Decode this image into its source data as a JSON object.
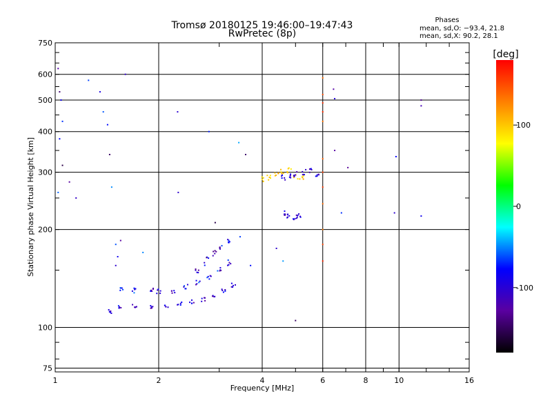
{
  "chart_data": {
    "type": "scatter",
    "title": "Tromsø 20180125 19:46:00–19:47:43",
    "subtitle": "RwPretec (8p)",
    "xlabel": "Frequency [MHz]",
    "ylabel": "Stationary phase Virtual Height [km]",
    "x_scale": "log",
    "y_scale": "log",
    "xlim": [
      1,
      16
    ],
    "ylim": [
      73,
      750
    ],
    "x_ticks": [
      1,
      2,
      4,
      6,
      8,
      10,
      16
    ],
    "y_ticks": [
      75,
      100,
      200,
      300,
      400,
      500,
      600,
      750
    ],
    "grid": true,
    "stats": {
      "heading": "Phases",
      "o_line": "mean, sd,O: −93.4, 21.8",
      "x_line": "mean, sd,X:  90.2, 28.1"
    },
    "colorbar": {
      "label": "[deg]",
      "ticks": [
        100,
        0,
        -100
      ],
      "range": [
        -180,
        180
      ],
      "colors": [
        "#000000",
        "#5a00a0",
        "#0000ff",
        "#00ffff",
        "#00ff00",
        "#ffff00",
        "#ff8000",
        "#ff0000"
      ]
    },
    "point_sets": [
      {
        "name": "o-trace-lower",
        "phase": -100,
        "jitter": 30,
        "spread_y": 0.015,
        "x": [
          1.45,
          1.55,
          1.7,
          1.9,
          2.1,
          2.3,
          2.5,
          2.7,
          2.9,
          3.1,
          3.3
        ],
        "y": [
          112,
          115,
          116,
          116,
          116,
          118,
          120,
          122,
          126,
          130,
          135
        ]
      },
      {
        "name": "o-trace-upper",
        "phase": -90,
        "jitter": 40,
        "spread_y": 0.02,
        "x": [
          1.55,
          1.7,
          1.9,
          2.0,
          2.2,
          2.4,
          2.6,
          2.8,
          3.0,
          3.2
        ],
        "y": [
          130,
          130,
          131,
          129,
          130,
          133,
          137,
          143,
          150,
          158
        ]
      },
      {
        "name": "o-trace-steep",
        "phase": -100,
        "jitter": 40,
        "spread_y": 0.03,
        "x": [
          2.6,
          2.75,
          2.9,
          3.05,
          3.2
        ],
        "y": [
          150,
          160,
          170,
          178,
          185
        ]
      },
      {
        "name": "x-trace-f",
        "phase": 100,
        "jitter": 15,
        "spread_y": 0.02,
        "x": [
          4.0,
          4.2,
          4.4,
          4.6,
          4.8,
          5.0,
          5.2
        ],
        "y": [
          286,
          290,
          295,
          300,
          305,
          292,
          288
        ]
      },
      {
        "name": "o-trace-f",
        "phase": -100,
        "jitter": 25,
        "spread_y": 0.02,
        "x": [
          4.6,
          4.8,
          5.0,
          5.3,
          5.5,
          5.8
        ],
        "y": [
          290,
          292,
          295,
          300,
          305,
          290
        ]
      },
      {
        "name": "o-trace-f-low",
        "phase": -100,
        "jitter": 25,
        "spread_y": 0.02,
        "x": [
          4.6,
          4.8,
          5.0,
          5.1
        ],
        "y": [
          225,
          220,
          218,
          222
        ]
      },
      {
        "name": "vertical-streak-6mhz",
        "phase": 150,
        "jitter": 20,
        "spread_y": 0.0,
        "x": [
          6.0,
          6.0,
          6.0,
          6.0,
          6.0,
          6.0,
          6.0,
          6.0,
          6.0,
          6.0,
          6.0,
          6.0
        ],
        "y": [
          585,
          520,
          490,
          460,
          430,
          330,
          300,
          270,
          240,
          200,
          180,
          160
        ]
      },
      {
        "name": "scattered",
        "phase": -100,
        "jitter": 60,
        "spread_y": 0.0,
        "x": [
          1.02,
          1.03,
          1.04,
          1.05,
          1.03,
          1.02,
          1.25,
          1.35,
          1.38,
          1.42,
          1.44,
          1.46,
          1.5,
          1.52,
          1.6,
          2.27,
          2.28,
          2.8,
          2.92,
          3.42,
          3.58,
          3.45,
          4.4,
          4.6,
          5.0,
          6.45,
          6.5,
          6.5,
          6.8,
          7.1,
          9.8,
          11.6,
          11.6,
          11.6,
          1.05,
          1.1,
          1.15,
          1.5,
          1.55,
          9.7,
          1.8,
          3.7
        ],
        "y": [
          625,
          530,
          500,
          430,
          380,
          260,
          575,
          530,
          460,
          420,
          340,
          270,
          180,
          165,
          600,
          460,
          260,
          400,
          210,
          370,
          340,
          190,
          175,
          160,
          105,
          540,
          505,
          350,
          225,
          310,
          335,
          500,
          480,
          220,
          315,
          280,
          250,
          155,
          185,
          225,
          170,
          155
        ]
      }
    ]
  }
}
